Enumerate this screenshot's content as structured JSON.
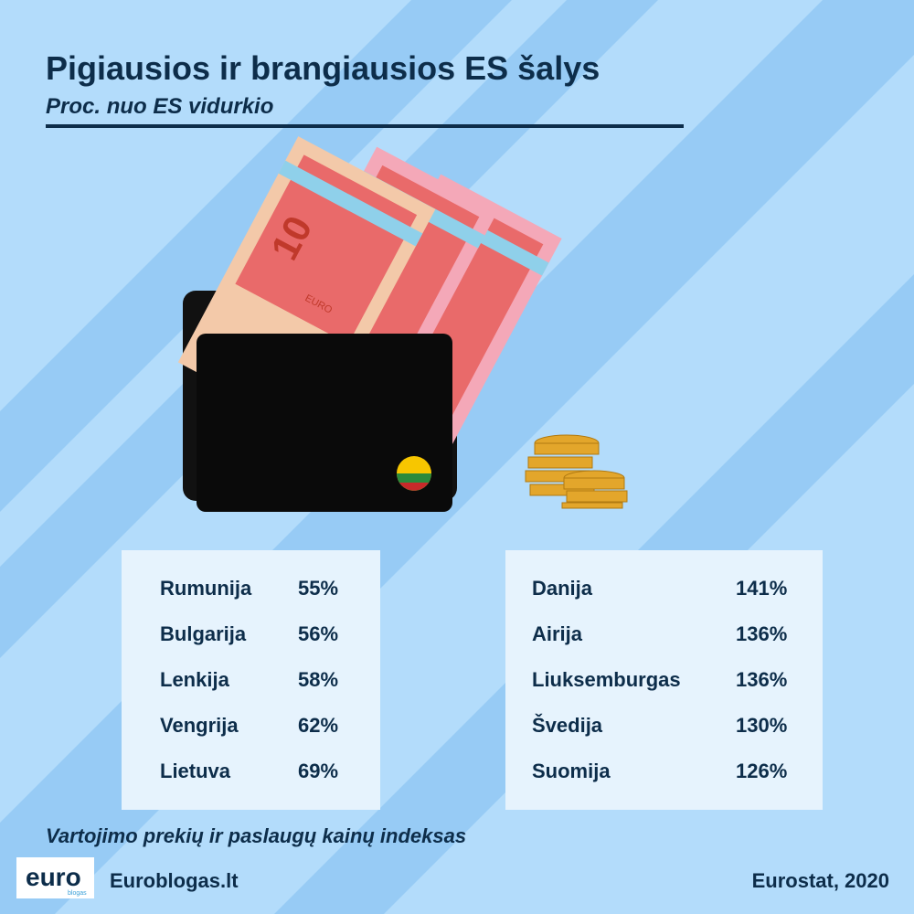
{
  "header": {
    "title": "Pigiausios ir brangiausios ES šalys",
    "subtitle": "Proc. nuo ES vidurkio"
  },
  "illustration": {
    "note_value": "10",
    "note_text": "EURO"
  },
  "tables": [
    {
      "rows": [
        [
          "Rumunija",
          "55%"
        ],
        [
          "Bulgarija",
          "56%"
        ],
        [
          "Lenkija",
          "58%"
        ],
        [
          "Vengrija",
          "62%"
        ],
        [
          "Lietuva",
          "69%"
        ]
      ]
    },
    {
      "rows": [
        [
          "Danija",
          "141%"
        ],
        [
          "Airija",
          "136%"
        ],
        [
          "Liuksemburgas",
          "136%"
        ],
        [
          "Švedija",
          "130%"
        ],
        [
          "Suomija",
          "126%"
        ]
      ]
    }
  ],
  "footer": {
    "note": "Vartojimo prekių ir paslaugų kainų indeksas",
    "logo": "euro",
    "logo_sub": "blogas",
    "site": "Euroblogas.lt",
    "source": "Eurostat, 2020"
  }
}
